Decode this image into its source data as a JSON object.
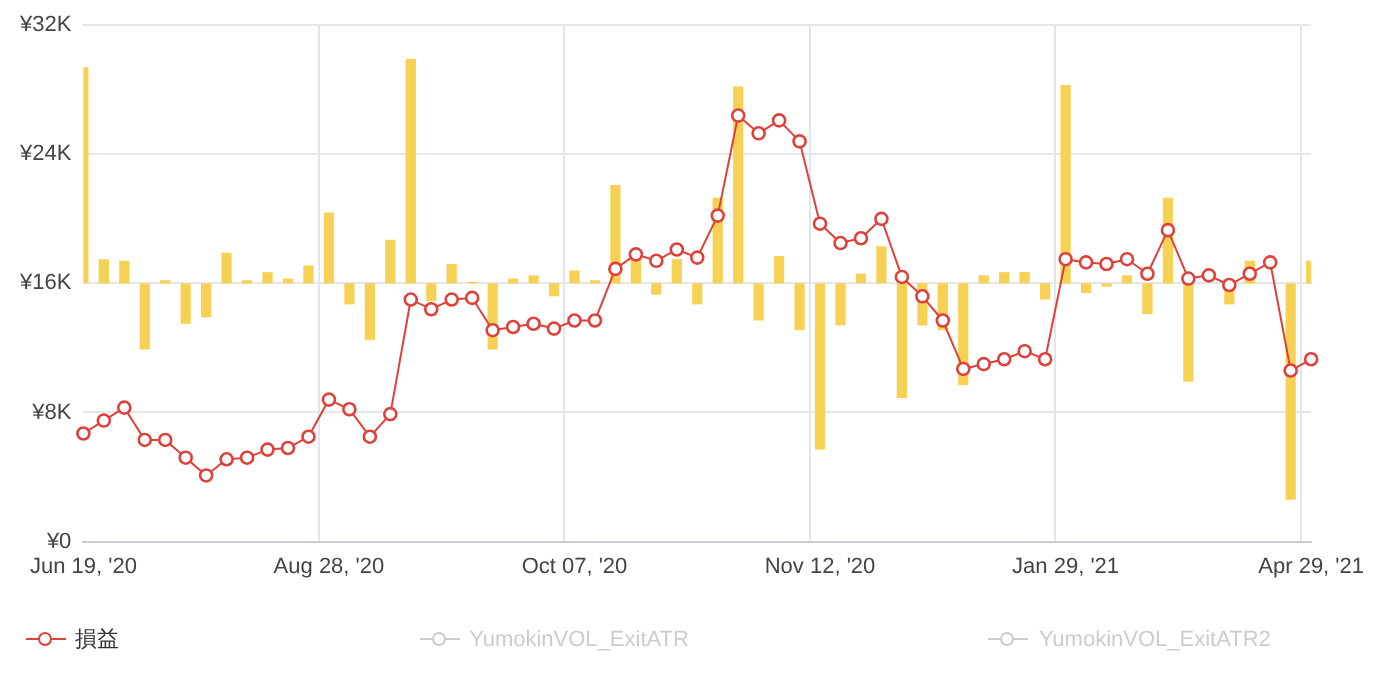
{
  "chart_data": {
    "type": "line",
    "categories": [
      "Jun 19, '20",
      null,
      null,
      null,
      null,
      null,
      null,
      null,
      null,
      null,
      null,
      null,
      "Aug 28, '20",
      null,
      null,
      null,
      null,
      null,
      null,
      null,
      null,
      null,
      null,
      null,
      "Oct 07, '20",
      null,
      null,
      null,
      null,
      null,
      null,
      null,
      null,
      null,
      null,
      null,
      "Nov 12, '20",
      null,
      null,
      null,
      null,
      null,
      null,
      null,
      null,
      null,
      null,
      null,
      "Jan 29, '21",
      null,
      null,
      null,
      null,
      null,
      null,
      null,
      null,
      null,
      null,
      null,
      "Apr 29, '21"
    ],
    "series": [
      {
        "name": "損益",
        "color": "#e0403a",
        "values": [
          6700,
          7500,
          8300,
          6300,
          6300,
          5200,
          4100,
          5100,
          5200,
          5700,
          5800,
          6500,
          8800,
          8200,
          6500,
          7900,
          15000,
          14400,
          15000,
          15100,
          13100,
          13300,
          13500,
          13200,
          13700,
          13700,
          16900,
          17800,
          17400,
          18100,
          17600,
          20200,
          26400,
          25300,
          26100,
          24800,
          19700,
          18500,
          18800,
          20000,
          16400,
          15200,
          13700,
          10700,
          11000,
          11300,
          11800,
          11300,
          17500,
          17300,
          17200,
          17500,
          16600,
          19300,
          16300,
          16500,
          15900,
          16600,
          17300,
          10600,
          11300
        ]
      },
      {
        "name": "YumokinVOL_ExitATR",
        "color": "#cccccc",
        "values": [
          null,
          null,
          null,
          null,
          null,
          null,
          null,
          null,
          null,
          null,
          null,
          null,
          null,
          null,
          null,
          null,
          null,
          null,
          null,
          null,
          null,
          null,
          null,
          null,
          null,
          null,
          null,
          null,
          null,
          null,
          null,
          null,
          null,
          null,
          null,
          null,
          null,
          null,
          null,
          null,
          null,
          null,
          null,
          null,
          null,
          null,
          null,
          null,
          null,
          null,
          null,
          null,
          null,
          null,
          null,
          null,
          null,
          null,
          null,
          null,
          null
        ]
      },
      {
        "name": "YumokinVOL_ExitATR2",
        "color": "#cccccc",
        "values": [
          null,
          null,
          null,
          null,
          null,
          null,
          null,
          null,
          null,
          null,
          null,
          null,
          null,
          null,
          null,
          null,
          null,
          null,
          null,
          null,
          null,
          null,
          null,
          null,
          null,
          null,
          null,
          null,
          null,
          null,
          null,
          null,
          null,
          null,
          null,
          null,
          null,
          null,
          null,
          null,
          null,
          null,
          null,
          null,
          null,
          null,
          null,
          null,
          null,
          null,
          null,
          null,
          null,
          null,
          null,
          null,
          null,
          null,
          null,
          null,
          null
        ]
      },
      {
        "type": "bar",
        "color": "#f7d154",
        "values": [
          13400,
          1500,
          1400,
          -4100,
          200,
          -2500,
          -2100,
          1900,
          200,
          700,
          300,
          1100,
          4400,
          -1300,
          -3500,
          2700,
          13900,
          -1100,
          1200,
          100,
          -4100,
          300,
          500,
          -800,
          800,
          200,
          6100,
          1700,
          -700,
          1500,
          -1300,
          5300,
          12200,
          -2300,
          1700,
          -2900,
          -10300,
          -2600,
          600,
          2300,
          -7100,
          -2600,
          -2900,
          -6300,
          500,
          700,
          700,
          -1000,
          12300,
          -600,
          -200,
          500,
          -1900,
          5300,
          -6100,
          null,
          -1300,
          1400,
          null,
          -13400,
          1400
        ],
        "base": [
          16000,
          16000,
          16000,
          16000,
          16000,
          16000,
          16000,
          16000,
          16000,
          16000,
          16000,
          16000,
          16000,
          16000,
          16000,
          16000,
          16000,
          16000,
          16000,
          16000,
          16000,
          16000,
          16000,
          16000,
          16000,
          16000,
          16000,
          16000,
          16000,
          16000,
          16000,
          16000,
          16000,
          16000,
          16000,
          16000,
          16000,
          16000,
          16000,
          16000,
          16000,
          16000,
          16000,
          16000,
          16000,
          16000,
          16000,
          16000,
          16000,
          16000,
          16000,
          16000,
          16000,
          16000,
          16000,
          null,
          16000,
          16000,
          null,
          16000,
          16000
        ]
      }
    ],
    "ylim": [
      0,
      32000
    ],
    "yticks": [
      {
        "value": 0,
        "label": "¥0"
      },
      {
        "value": 8000,
        "label": "¥8K"
      },
      {
        "value": 16000,
        "label": "¥16K"
      },
      {
        "value": 24000,
        "label": "¥24K"
      },
      {
        "value": 32000,
        "label": "¥32K"
      }
    ],
    "grid": true,
    "legend": "bottom",
    "marker": "circle"
  }
}
